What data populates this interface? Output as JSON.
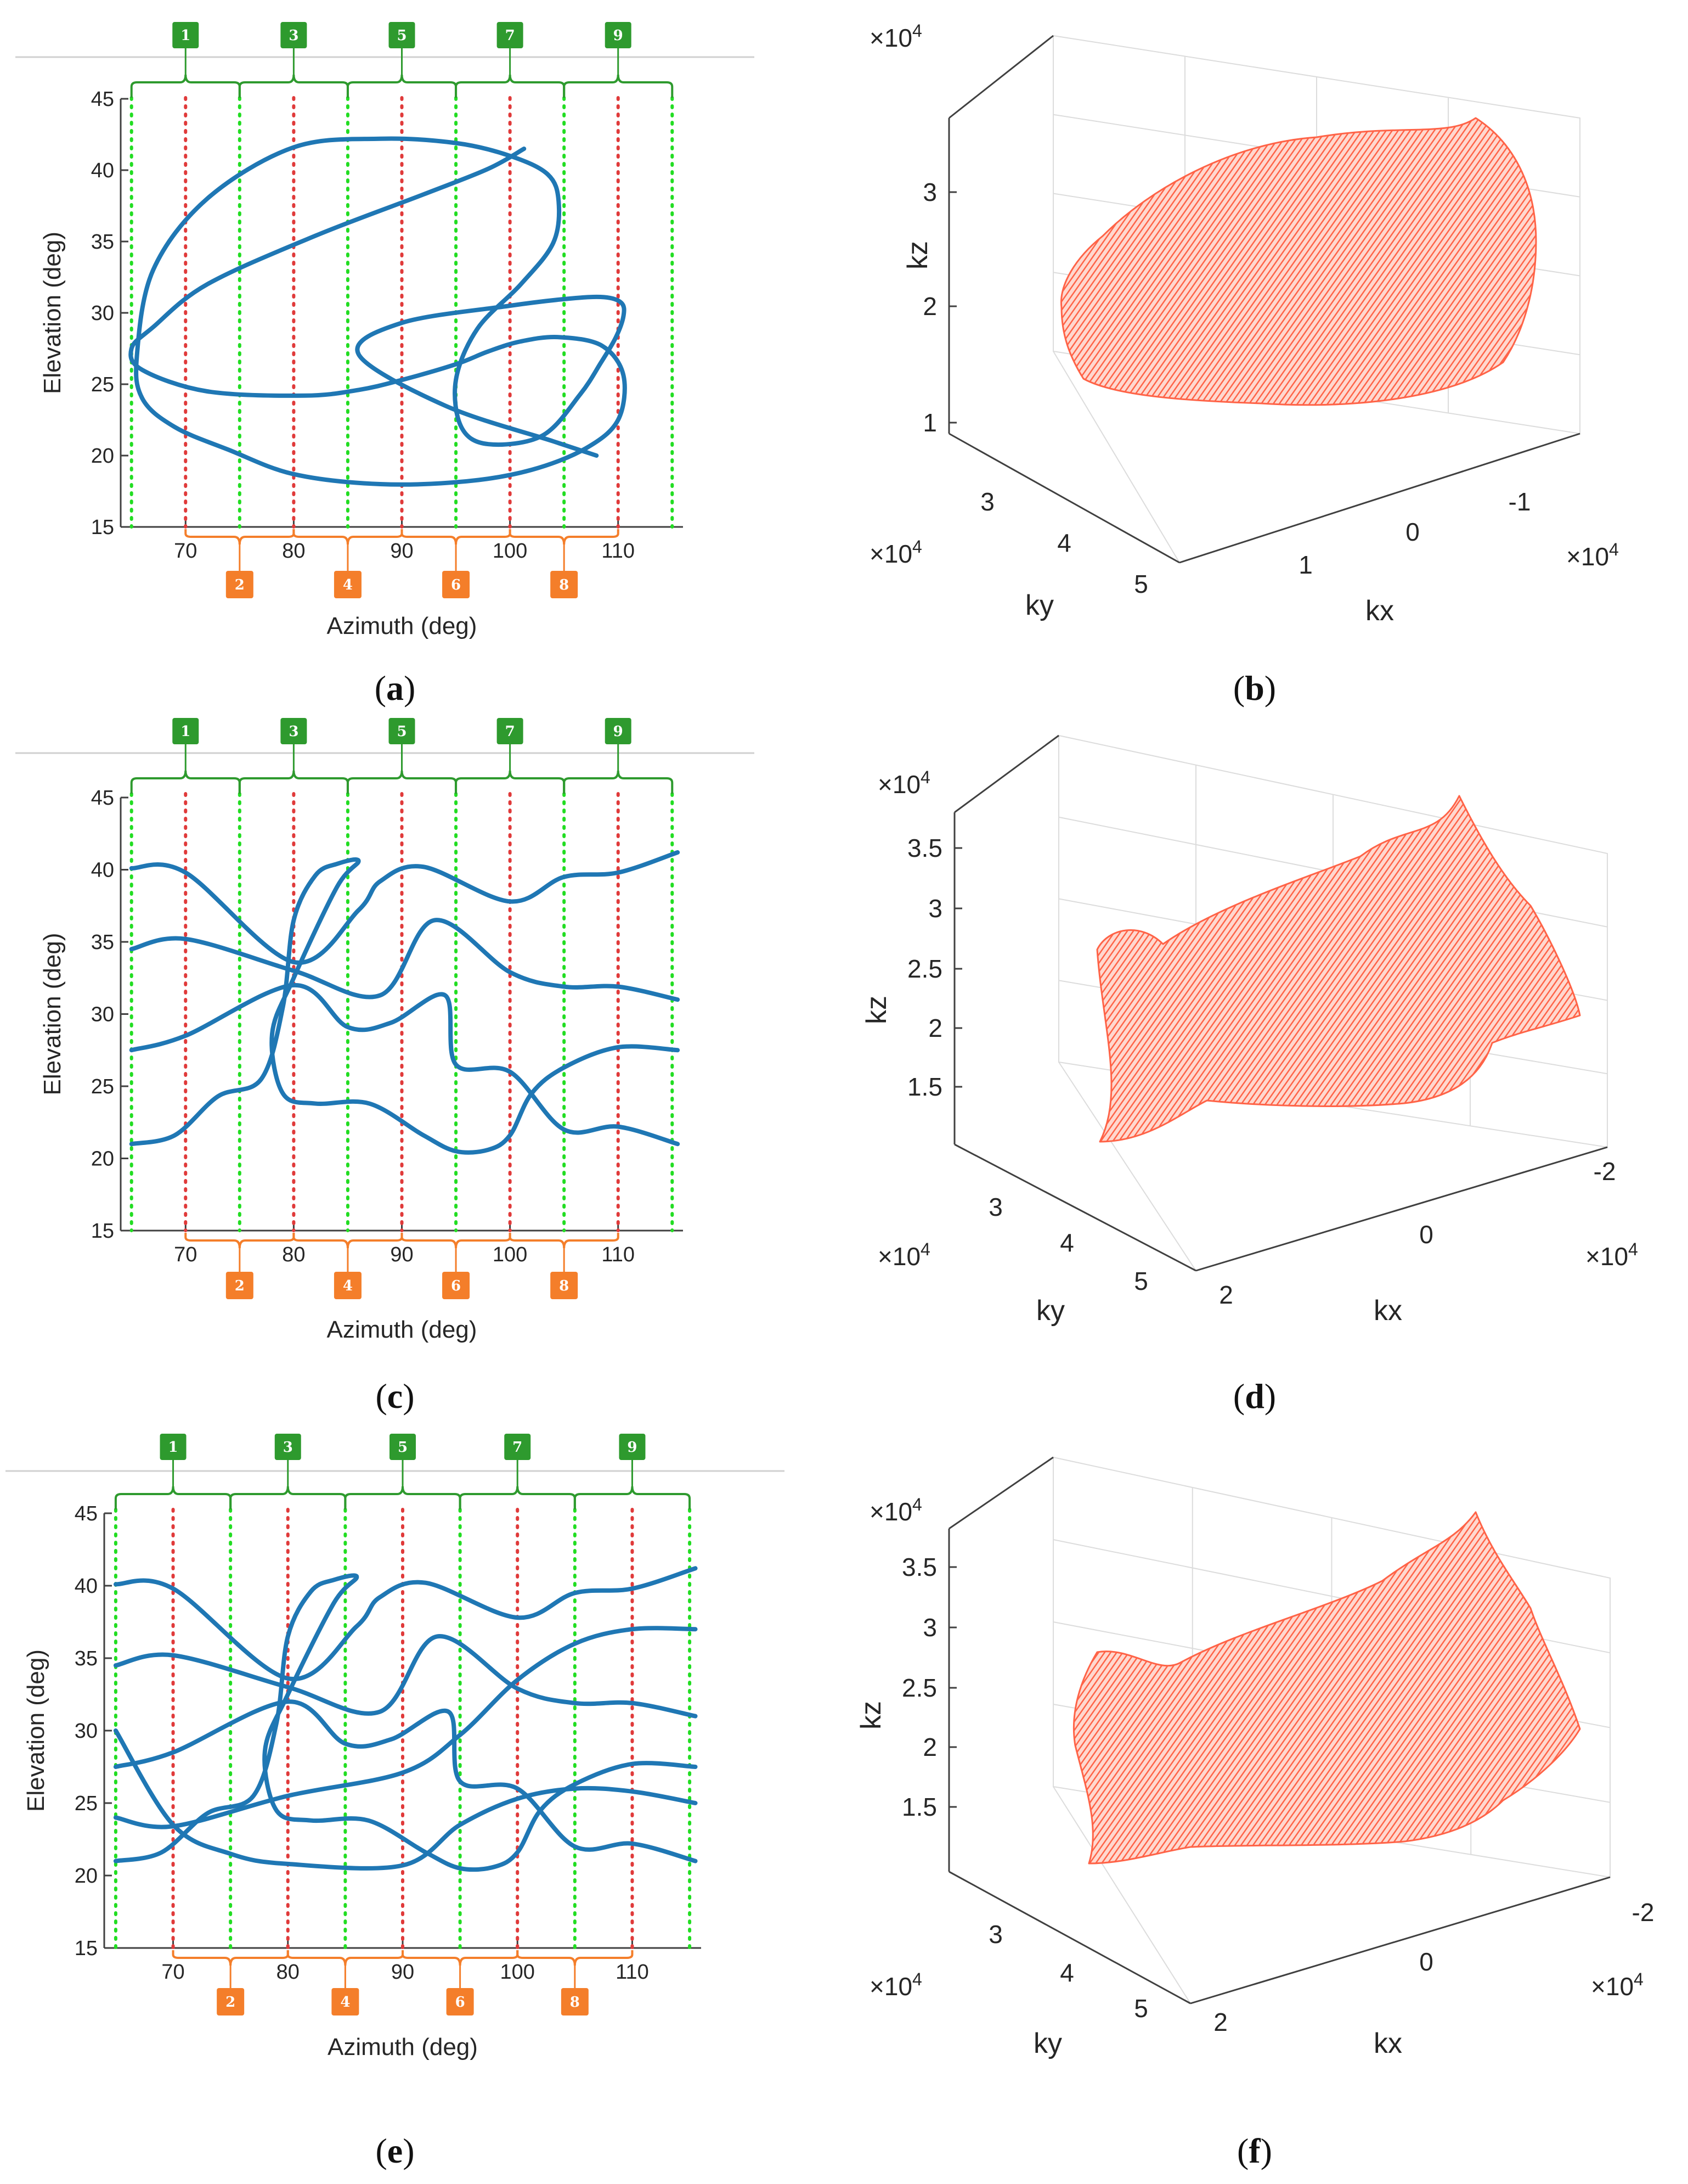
{
  "captions": [
    "a",
    "b",
    "c",
    "d",
    "e",
    "f"
  ],
  "colors": {
    "trajectory": "#1f77b4",
    "green_marker": "#2e9a2e",
    "orange_marker": "#f47e2a",
    "green_line": "#22dd22",
    "red_line": "#e03a3a",
    "kspace_points": "#ff6347"
  },
  "chart_data": [
    {
      "id": "a",
      "type": "line",
      "xlabel": "Azimuth (deg)",
      "ylabel": "Elevation (deg)",
      "xlim": [
        64,
        116
      ],
      "ylim": [
        15,
        45
      ],
      "xticks": [
        70,
        80,
        90,
        100,
        110
      ],
      "yticks": [
        15,
        20,
        25,
        30,
        35,
        40,
        45
      ],
      "green_markers": [
        "1",
        "3",
        "5",
        "7",
        "9"
      ],
      "orange_markers": [
        "2",
        "4",
        "6",
        "8"
      ],
      "green_line_x": [
        65,
        75,
        85,
        95,
        105,
        115
      ],
      "red_line_x": [
        70,
        80,
        90,
        100,
        110
      ],
      "series": [
        {
          "x": [
            101.3,
            98,
            92,
            82,
            72,
            67,
            65,
            66,
            72,
            81,
            86,
            90,
            95,
            98,
            101,
            104.5,
            108.5,
            110.5,
            110,
            107,
            102,
            96,
            88,
            80,
            74,
            69,
            66,
            65.5,
            67,
            72,
            80,
            88,
            95,
            100,
            103.5,
            104.5,
            104,
            101,
            97,
            95,
            95.5,
            98,
            103,
            106.5,
            108.4,
            109.8,
            110.5,
            110.3,
            108.7,
            105.5,
            100,
            90,
            86,
            94,
            104,
            108
          ],
          "y": [
            41.5,
            40.1,
            38.3,
            35.4,
            32,
            29,
            27.5,
            26,
            24.5,
            24.2,
            24.6,
            25.3,
            26.4,
            27.3,
            28,
            28.3,
            27.7,
            25.6,
            22.5,
            20.5,
            19,
            18.2,
            18,
            18.7,
            20.4,
            22,
            24,
            27,
            33,
            38,
            41.6,
            42.2,
            41.9,
            41,
            39.7,
            37.8,
            34.9,
            32,
            28.9,
            25.3,
            22,
            20.8,
            21.4,
            24.3,
            26.5,
            28.3,
            29.8,
            30.7,
            31.1,
            31,
            30.5,
            29.3,
            27.1,
            23.5,
            21,
            20
          ]
        }
      ]
    },
    {
      "id": "b",
      "type": "scatter",
      "xlabel": "kx",
      "ylabel": "ky",
      "zlabel": "kz",
      "xticks": [
        "1",
        "0",
        "-1"
      ],
      "yticks": [
        "3",
        "4",
        "5"
      ],
      "zticks": [
        "1",
        "2",
        "3"
      ],
      "x_exponent": "×10^4",
      "y_exponent": "×10^4",
      "z_exponent": "×10^4"
    },
    {
      "id": "c",
      "type": "line",
      "xlabel": "Azimuth (deg)",
      "ylabel": "Elevation (deg)",
      "xlim": [
        64,
        116
      ],
      "ylim": [
        15,
        45
      ],
      "xticks": [
        70,
        80,
        90,
        100,
        110
      ],
      "yticks": [
        15,
        20,
        25,
        30,
        35,
        40,
        45
      ],
      "green_markers": [
        "1",
        "3",
        "5",
        "7",
        "9"
      ],
      "orange_markers": [
        "2",
        "4",
        "6",
        "8"
      ],
      "green_line_x": [
        65,
        75,
        85,
        95,
        105,
        115
      ],
      "red_line_x": [
        70,
        80,
        90,
        100,
        110
      ],
      "series": [
        {
          "x": [
            65,
            70,
            80,
            86,
            88,
            92,
            100,
            105,
            110,
            115.5
          ],
          "y": [
            40.1,
            39.8,
            33.6,
            37.2,
            39.2,
            40.2,
            37.8,
            39.5,
            39.8,
            41.2
          ]
        },
        {
          "x": [
            65,
            70,
            80,
            88,
            93,
            100,
            105,
            110,
            115.5
          ],
          "y": [
            34.5,
            35.2,
            33,
            31.3,
            36.5,
            32.9,
            31.9,
            31.9,
            31
          ]
        },
        {
          "x": [
            65,
            70,
            80,
            85,
            89,
            94,
            95,
            100,
            105,
            110,
            115.5
          ],
          "y": [
            27.5,
            28.5,
            32,
            29.1,
            29.4,
            31.3,
            26.5,
            26,
            22,
            22.2,
            21
          ]
        },
        {
          "x": [
            65,
            69,
            73,
            77,
            79,
            80,
            82,
            84,
            86,
            84,
            80,
            78,
            79,
            82,
            87,
            92,
            95,
            98,
            100,
            102,
            105,
            110,
            115.5
          ],
          "y": [
            21,
            21.6,
            24.3,
            25.5,
            30.5,
            36.5,
            39.6,
            40.4,
            40.6,
            38.8,
            32.5,
            28.6,
            24.5,
            23.8,
            23.8,
            21.6,
            20.5,
            20.6,
            21.6,
            24.5,
            26.3,
            27.7,
            27.5
          ]
        }
      ]
    },
    {
      "id": "d",
      "type": "scatter",
      "xlabel": "kx",
      "ylabel": "ky",
      "zlabel": "kz",
      "xticks": [
        "2",
        "0",
        "-2"
      ],
      "yticks": [
        "3",
        "4",
        "5"
      ],
      "zticks": [
        "1.5",
        "2",
        "2.5",
        "3",
        "3.5"
      ],
      "x_exponent": "×10^4",
      "y_exponent": "×10^4",
      "z_exponent": "×10^4"
    },
    {
      "id": "e",
      "type": "line",
      "xlabel": "Azimuth (deg)",
      "ylabel": "Elevation (deg)",
      "xlim": [
        64,
        116
      ],
      "ylim": [
        15,
        45
      ],
      "xticks": [
        70,
        80,
        90,
        100,
        110
      ],
      "yticks": [
        15,
        20,
        25,
        30,
        35,
        40,
        45
      ],
      "green_markers": [
        "1",
        "3",
        "5",
        "7",
        "9"
      ],
      "orange_markers": [
        "2",
        "4",
        "6",
        "8"
      ],
      "green_line_x": [
        65,
        75,
        85,
        95,
        105,
        115
      ],
      "red_line_x": [
        70,
        80,
        90,
        100,
        110
      ],
      "series": [
        {
          "x": [
            65,
            70,
            80,
            86,
            88,
            92,
            100,
            105,
            110,
            115.5
          ],
          "y": [
            40.1,
            39.8,
            33.6,
            37.2,
            39.2,
            40.2,
            37.8,
            39.5,
            39.8,
            41.2
          ]
        },
        {
          "x": [
            65,
            70,
            80,
            88,
            93,
            100,
            105,
            110,
            115.5
          ],
          "y": [
            34.5,
            35.2,
            33,
            31.3,
            36.5,
            32.9,
            31.9,
            31.9,
            31
          ]
        },
        {
          "x": [
            65,
            70,
            80,
            85,
            89,
            94,
            95,
            100,
            105,
            110,
            115.5
          ],
          "y": [
            27.5,
            28.5,
            32,
            29.1,
            29.4,
            31.3,
            26.5,
            26,
            22,
            22.2,
            21
          ]
        },
        {
          "x": [
            65,
            69,
            73,
            77,
            79,
            80,
            82,
            84,
            86,
            84,
            80,
            78,
            79,
            82,
            87,
            92,
            95,
            98,
            100,
            102,
            105,
            110,
            115.5
          ],
          "y": [
            21,
            21.6,
            24.3,
            25.5,
            30.5,
            36.5,
            39.6,
            40.4,
            40.6,
            38.8,
            32.5,
            28.6,
            24.5,
            23.8,
            23.8,
            21.6,
            20.5,
            20.6,
            21.6,
            24.5,
            26.3,
            27.7,
            27.5
          ]
        },
        {
          "x": [
            65,
            70,
            80,
            90,
            95,
            100,
            105,
            110,
            115.5
          ],
          "y": [
            24,
            23.4,
            25.5,
            27.1,
            29.7,
            33.5,
            36,
            37,
            37
          ]
        },
        {
          "x": [
            65,
            70,
            75,
            80,
            90,
            95,
            100,
            105,
            110,
            115.5
          ],
          "y": [
            30,
            23.5,
            21.5,
            20.8,
            20.7,
            23.5,
            25.3,
            26,
            25.8,
            25
          ]
        }
      ]
    },
    {
      "id": "f",
      "type": "scatter",
      "xlabel": "kx",
      "ylabel": "ky",
      "zlabel": "kz",
      "xticks": [
        "2",
        "0",
        "-2"
      ],
      "yticks": [
        "3",
        "4",
        "5"
      ],
      "zticks": [
        "1.5",
        "2",
        "2.5",
        "3",
        "3.5"
      ],
      "x_exponent": "×10^4",
      "y_exponent": "×10^4",
      "z_exponent": "×10^4"
    }
  ]
}
